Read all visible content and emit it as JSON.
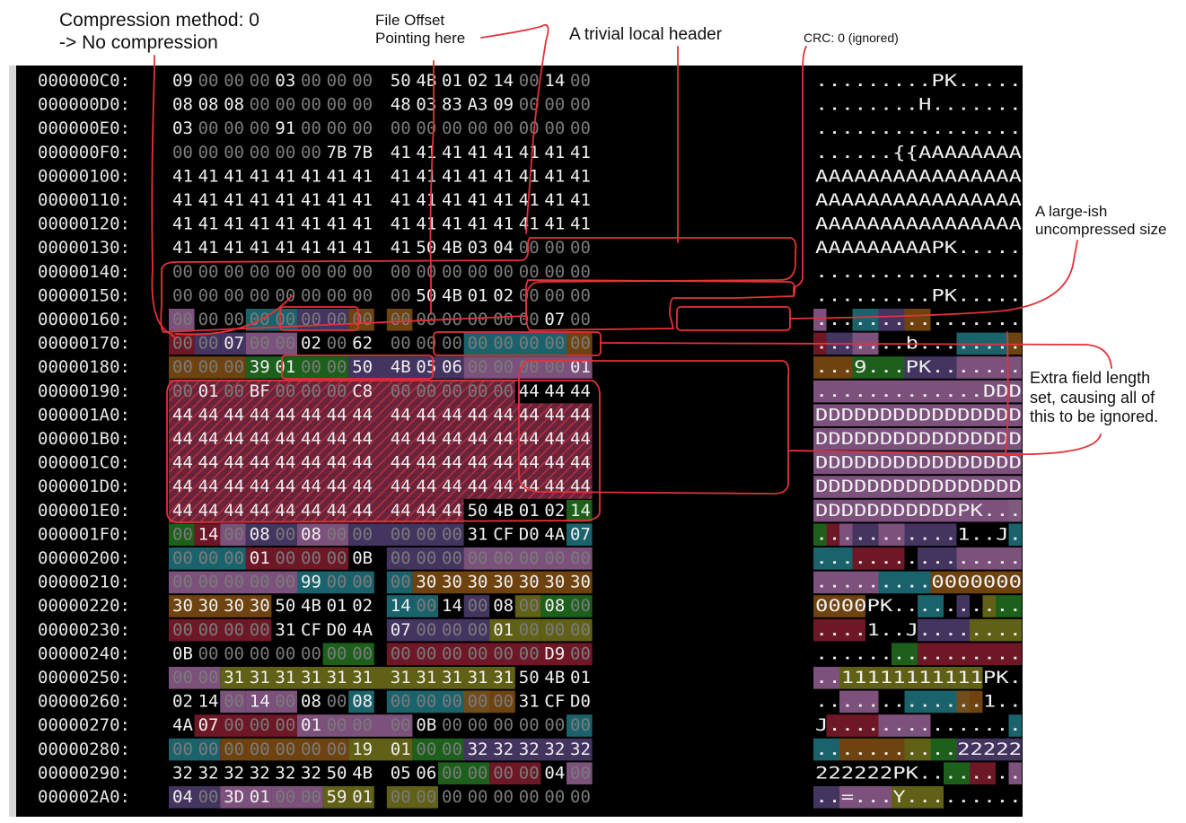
{
  "annotations": {
    "compression_method": [
      "Compression method: 0",
      "-> No compression"
    ],
    "file_offset": [
      "File Offset",
      "Pointing here"
    ],
    "local_header": "A trivial local header",
    "crc": "CRC: 0 (ignored)",
    "uncompressed_size": [
      "A large-ish",
      "uncompressed size"
    ],
    "extra_field": [
      "Extra field length",
      "set, causing all of",
      "this to be ignored."
    ]
  },
  "hex_dump": {
    "rows": [
      {
        "offset": "000000C0:",
        "bytes": "09 00 00 00 03 00 00 00 50 4B 01 02 14 00 14 00",
        "ascii": ".........PK....."
      },
      {
        "offset": "000000D0:",
        "bytes": "08 08 08 00 00 00 00 00 48 03 83 A3 09 00 00 00",
        "ascii": "........H......."
      },
      {
        "offset": "000000E0:",
        "bytes": "03 00 00 00 91 00 00 00 00 00 00 00 00 00 00 00",
        "ascii": "................"
      },
      {
        "offset": "000000F0:",
        "bytes": "00 00 00 00 00 00 7B 7B 41 41 41 41 41 41 41 41",
        "ascii": "......{{AAAAAAAA"
      },
      {
        "offset": "00000100:",
        "bytes": "41 41 41 41 41 41 41 41 41 41 41 41 41 41 41 41",
        "ascii": "AAAAAAAAAAAAAAAA"
      },
      {
        "offset": "00000110:",
        "bytes": "41 41 41 41 41 41 41 41 41 41 41 41 41 41 41 41",
        "ascii": "AAAAAAAAAAAAAAAA"
      },
      {
        "offset": "00000120:",
        "bytes": "41 41 41 41 41 41 41 41 41 41 41 41 41 41 41 41",
        "ascii": "AAAAAAAAAAAAAAAA"
      },
      {
        "offset": "00000130:",
        "bytes": "41 41 41 41 41 41 41 41 41 50 4B 03 04 00 00 00",
        "ascii": "AAAAAAAAAPK....."
      },
      {
        "offset": "00000140:",
        "bytes": "00 00 00 00 00 00 00 00 00 00 00 00 00 00 00 00",
        "ascii": "................"
      },
      {
        "offset": "00000150:",
        "bytes": "00 00 00 00 00 00 00 00 00 50 4B 01 02 00 00 00",
        "ascii": ".........PK....."
      },
      {
        "offset": "00000160:",
        "bytes": "00 00 00 00 00 00 00 00 00 00 00 00 00 00 07 00",
        "ascii": "................"
      },
      {
        "offset": "00000170:",
        "bytes": "00 00 07 00 00 02 00 62 00 00 00 00 00 00 00 00",
        "ascii": ".......b........"
      },
      {
        "offset": "00000180:",
        "bytes": "00 00 00 39 01 00 00 50 4B 05 06 00 00 00 00 01",
        "ascii": "...9...PK......."
      },
      {
        "offset": "00000190:",
        "bytes": "00 01 00 BF 00 00 00 C8 00 00 00 00 00 44 44 44",
        "ascii": ".............DDD"
      },
      {
        "offset": "000001A0:",
        "bytes": "44 44 44 44 44 44 44 44 44 44 44 44 44 44 44 44",
        "ascii": "DDDDDDDDDDDDDDDD"
      },
      {
        "offset": "000001B0:",
        "bytes": "44 44 44 44 44 44 44 44 44 44 44 44 44 44 44 44",
        "ascii": "DDDDDDDDDDDDDDDD"
      },
      {
        "offset": "000001C0:",
        "bytes": "44 44 44 44 44 44 44 44 44 44 44 44 44 44 44 44",
        "ascii": "DDDDDDDDDDDDDDDD"
      },
      {
        "offset": "000001D0:",
        "bytes": "44 44 44 44 44 44 44 44 44 44 44 44 44 44 44 44",
        "ascii": "DDDDDDDDDDDDDDDD"
      },
      {
        "offset": "000001E0:",
        "bytes": "44 44 44 44 44 44 44 44 44 44 44 50 4B 01 02 14",
        "ascii": "DDDDDDDDDDDPK..."
      },
      {
        "offset": "000001F0:",
        "bytes": "00 14 00 08 00 08 00 00 00 00 00 31 CF D0 4A 07",
        "ascii": "...........1..J."
      },
      {
        "offset": "00000200:",
        "bytes": "00 00 00 01 00 00 00 0B 00 00 00 00 00 00 00 00",
        "ascii": "................"
      },
      {
        "offset": "00000210:",
        "bytes": "00 00 00 00 00 99 00 00 00 30 30 30 30 30 30 30",
        "ascii": ".........0000000"
      },
      {
        "offset": "00000220:",
        "bytes": "30 30 30 30 50 4B 01 02 14 00 14 00 08 00 08 00",
        "ascii": "0000PK.........."
      },
      {
        "offset": "00000230:",
        "bytes": "00 00 00 00 31 CF D0 4A 07 00 00 00 01 00 00 00",
        "ascii": "....1..J........"
      },
      {
        "offset": "00000240:",
        "bytes": "0B 00 00 00 00 00 00 00 00 00 00 00 00 00 D9 00",
        "ascii": "................"
      },
      {
        "offset": "00000250:",
        "bytes": "00 00 31 31 31 31 31 31 31 31 31 31 31 50 4B 01",
        "ascii": "..11111111111PK."
      },
      {
        "offset": "00000260:",
        "bytes": "02 14 00 14 00 08 00 08 00 00 00 00 00 31 CF D0",
        "ascii": ".............1.."
      },
      {
        "offset": "00000270:",
        "bytes": "4A 07 00 00 00 01 00 00 00 0B 00 00 00 00 00 00",
        "ascii": "J..............."
      },
      {
        "offset": "00000280:",
        "bytes": "00 00 00 00 00 00 00 19 01 00 00 32 32 32 32 32",
        "ascii": "...........22222"
      },
      {
        "offset": "00000290:",
        "bytes": "32 32 32 32 32 32 50 4B 05 06 00 00 00 00 04 00",
        "ascii": "222222PK........"
      },
      {
        "offset": "000002A0:",
        "bytes": "04 00 3D 01 00 00 59 01 00 00 00 00 00 00 00 00",
        "ascii": "..=...Y........."
      }
    ],
    "colors": {
      "background": "#000000",
      "byte_text": "#f0f0f0",
      "zero_text": "#7a7a7a",
      "offset_text": "#e6e6e6",
      "highlight_red": "#e8323a",
      "hatch_fill": "#8e2a44",
      "mauve": "#8a5a8a",
      "teal": "#1e6e78",
      "brown": "#7a4a12",
      "green": "#1f6a1f",
      "olive": "#6a6a1a",
      "maroon": "#7a1a2a",
      "purple": "#4a3a6a"
    }
  }
}
